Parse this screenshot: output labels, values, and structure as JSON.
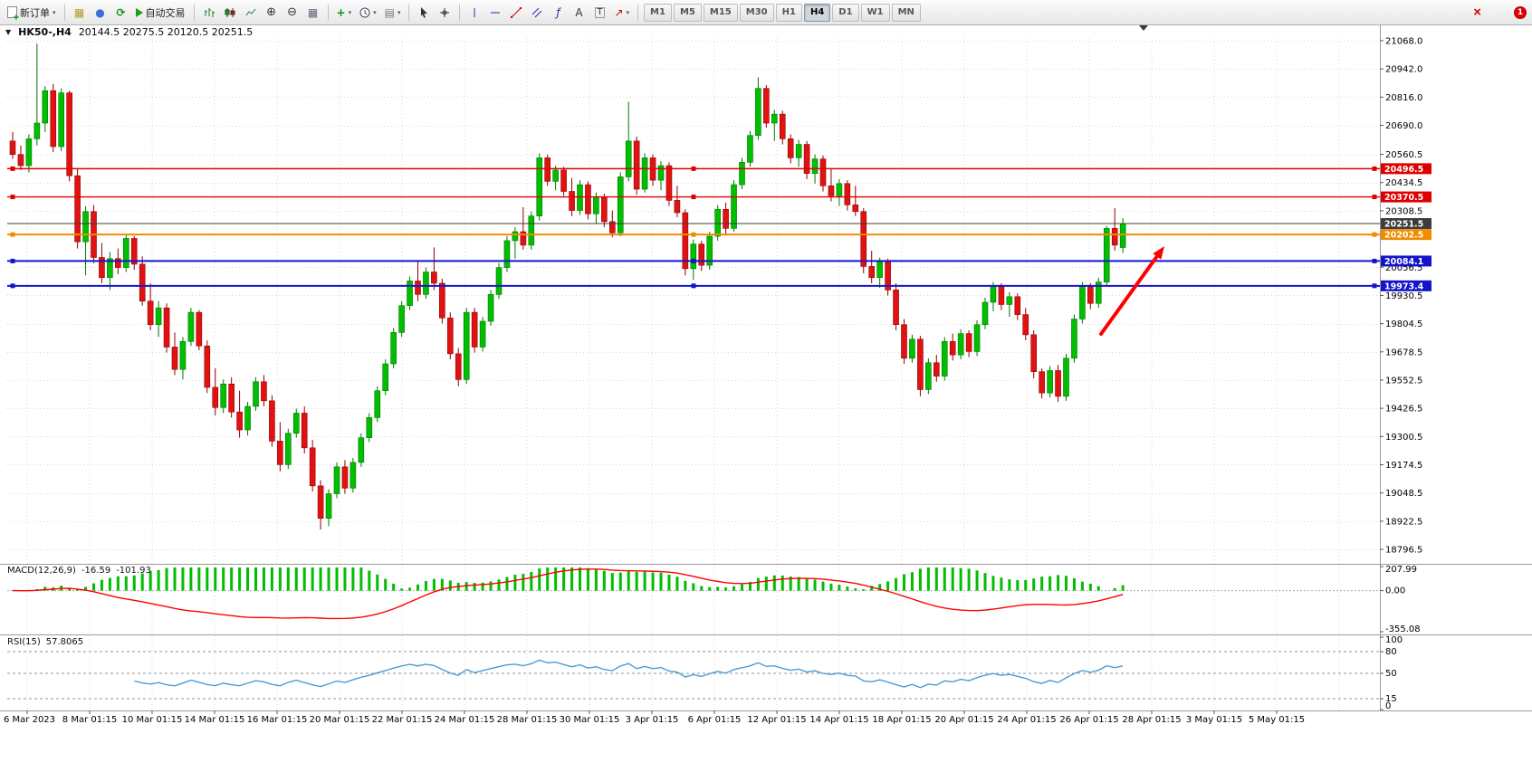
{
  "toolbar": {
    "new_order": "新订单",
    "auto_trading": "自动交易",
    "timeframes": [
      "M1",
      "M5",
      "M15",
      "M30",
      "H1",
      "H4",
      "D1",
      "W1",
      "MN"
    ],
    "active_timeframe": "H4",
    "notification_count": "1"
  },
  "chart": {
    "symbol_period": "HK50-,H4",
    "ohlc_text": "20144.5 20275.5 20120.5 20251.5"
  },
  "chart_data": {
    "type": "candlestick",
    "symbol": "HK50-",
    "timeframe": "H4",
    "price_range": {
      "min": 18736,
      "max": 21080
    },
    "y_axis_labels": [
      "21068.0",
      "20942.0",
      "20816.0",
      "20690.0",
      "20560.5",
      "20434.5",
      "20308.5",
      "20056.5",
      "19930.5",
      "19804.5",
      "19678.5",
      "19552.5",
      "19426.5",
      "19300.5",
      "19174.5",
      "19048.5",
      "18922.5",
      "18796.5"
    ],
    "x_axis_labels": [
      "6 Mar 2023",
      "8 Mar 01:15",
      "10 Mar 01:15",
      "14 Mar 01:15",
      "16 Mar 01:15",
      "20 Mar 01:15",
      "22 Mar 01:15",
      "24 Mar 01:15",
      "28 Mar 01:15",
      "30 Mar 01:15",
      "3 Apr 01:15",
      "6 Apr 01:15",
      "12 Apr 01:15",
      "14 Apr 01:15",
      "18 Apr 01:15",
      "20 Apr 01:15",
      "24 Apr 01:15",
      "26 Apr 01:15",
      "28 Apr 01:15",
      "3 May 01:15",
      "5 May 01:15"
    ],
    "levels": [
      {
        "price": 20496.5,
        "label": "20496.5",
        "color": "#DE0000",
        "width": 1.4
      },
      {
        "price": 20370.5,
        "label": "20370.5",
        "color": "#DE0000",
        "width": 1.4
      },
      {
        "price": 20251.5,
        "label": "20251.5",
        "color": "#3C3C3C",
        "width": 1,
        "role": "last-price"
      },
      {
        "price": 20202.5,
        "label": "20202.5",
        "color": "#F08C00",
        "width": 2
      },
      {
        "price": 20084.1,
        "label": "20084.1",
        "color": "#1414CC",
        "width": 2
      },
      {
        "price": 19973.4,
        "label": "19973.4",
        "color": "#1414CC",
        "width": 2
      }
    ],
    "colors": {
      "bull": "#00BE00",
      "bull_edge": "#007700",
      "bear": "#E21212",
      "bear_edge": "#8E0000",
      "grid": "#D9D9D9",
      "macd_hist": "#00BE00",
      "macd_signal": "#FF0000",
      "rsi_line": "#4E9BD2"
    },
    "annotation": {
      "type": "arrow",
      "direction": "up-right",
      "color": "#FF0000"
    },
    "macd": {
      "name": "MACD(12,26,9)",
      "value_main": "-16.59",
      "value_signal": "-101.93",
      "axis_labels": [
        "207.99",
        "0.00",
        "-355.08"
      ],
      "max": 207.99,
      "min": -355.08,
      "fast": 12,
      "slow": 26,
      "smoothing": 9
    },
    "rsi": {
      "name": "RSI(15)",
      "value": "57.8065",
      "axis_labels": [
        "100",
        "80",
        "50",
        "15",
        "0"
      ],
      "levels": [
        80,
        50,
        15
      ],
      "period": 15
    },
    "candles": [
      [
        20620,
        20660,
        20540,
        20560
      ],
      [
        20560,
        20600,
        20490,
        20510
      ],
      [
        20510,
        20650,
        20480,
        20630
      ],
      [
        20630,
        21055,
        20600,
        20700
      ],
      [
        20700,
        20865,
        20660,
        20845
      ],
      [
        20845,
        20875,
        20570,
        20595
      ],
      [
        20595,
        20855,
        20575,
        20835
      ],
      [
        20835,
        20845,
        20440,
        20465
      ],
      [
        20465,
        20500,
        20140,
        20170
      ],
      [
        20170,
        20330,
        20020,
        20305
      ],
      [
        20305,
        20335,
        20075,
        20100
      ],
      [
        20100,
        20165,
        19985,
        20010
      ],
      [
        20010,
        20125,
        19955,
        20095
      ],
      [
        20095,
        20140,
        20025,
        20055
      ],
      [
        20055,
        20205,
        20035,
        20185
      ],
      [
        20185,
        20195,
        20045,
        20070
      ],
      [
        20070,
        20105,
        19885,
        19905
      ],
      [
        19905,
        19985,
        19775,
        19800
      ],
      [
        19800,
        19905,
        19745,
        19875
      ],
      [
        19875,
        19895,
        19675,
        19700
      ],
      [
        19700,
        19765,
        19575,
        19600
      ],
      [
        19600,
        19745,
        19555,
        19725
      ],
      [
        19725,
        19875,
        19705,
        19855
      ],
      [
        19855,
        19865,
        19685,
        19705
      ],
      [
        19705,
        19730,
        19495,
        19520
      ],
      [
        19520,
        19605,
        19395,
        19430
      ],
      [
        19430,
        19555,
        19405,
        19535
      ],
      [
        19535,
        19565,
        19385,
        19410
      ],
      [
        19410,
        19505,
        19295,
        19330
      ],
      [
        19330,
        19455,
        19305,
        19435
      ],
      [
        19435,
        19565,
        19415,
        19545
      ],
      [
        19545,
        19575,
        19435,
        19460
      ],
      [
        19460,
        19485,
        19255,
        19280
      ],
      [
        19280,
        19365,
        19145,
        19175
      ],
      [
        19175,
        19335,
        19155,
        19315
      ],
      [
        19315,
        19425,
        19295,
        19405
      ],
      [
        19405,
        19435,
        19225,
        19250
      ],
      [
        19250,
        19285,
        19055,
        19080
      ],
      [
        19080,
        19105,
        18885,
        18935
      ],
      [
        18935,
        19065,
        18900,
        19045
      ],
      [
        19045,
        19185,
        19025,
        19165
      ],
      [
        19165,
        19195,
        19045,
        19070
      ],
      [
        19070,
        19205,
        19050,
        19185
      ],
      [
        19185,
        19315,
        19165,
        19295
      ],
      [
        19295,
        19405,
        19275,
        19385
      ],
      [
        19385,
        19525,
        19365,
        19505
      ],
      [
        19505,
        19645,
        19485,
        19625
      ],
      [
        19625,
        19785,
        19605,
        19765
      ],
      [
        19765,
        19905,
        19745,
        19885
      ],
      [
        19885,
        20015,
        19865,
        19995
      ],
      [
        19995,
        20085,
        19905,
        19935
      ],
      [
        19935,
        20055,
        19915,
        20035
      ],
      [
        20035,
        20145,
        19955,
        19985
      ],
      [
        19985,
        20005,
        19805,
        19830
      ],
      [
        19830,
        19855,
        19645,
        19670
      ],
      [
        19670,
        19695,
        19525,
        19555
      ],
      [
        19555,
        19875,
        19535,
        19855
      ],
      [
        19855,
        19875,
        19675,
        19700
      ],
      [
        19700,
        19835,
        19680,
        19815
      ],
      [
        19815,
        19955,
        19795,
        19935
      ],
      [
        19935,
        20075,
        19915,
        20055
      ],
      [
        20055,
        20195,
        20035,
        20175
      ],
      [
        20175,
        20235,
        20095,
        20215
      ],
      [
        20215,
        20325,
        20135,
        20155
      ],
      [
        20155,
        20305,
        20135,
        20285
      ],
      [
        20285,
        20565,
        20265,
        20545
      ],
      [
        20545,
        20560,
        20420,
        20440
      ],
      [
        20440,
        20510,
        20400,
        20490
      ],
      [
        20490,
        20505,
        20375,
        20395
      ],
      [
        20395,
        20455,
        20285,
        20310
      ],
      [
        20310,
        20445,
        20290,
        20425
      ],
      [
        20425,
        20440,
        20270,
        20295
      ],
      [
        20295,
        20390,
        20250,
        20370
      ],
      [
        20370,
        20385,
        20235,
        20260
      ],
      [
        20260,
        20310,
        20190,
        20210
      ],
      [
        20210,
        20480,
        20195,
        20460
      ],
      [
        20460,
        20795,
        20440,
        20620
      ],
      [
        20620,
        20640,
        20380,
        20405
      ],
      [
        20405,
        20565,
        20390,
        20545
      ],
      [
        20545,
        20560,
        20420,
        20445
      ],
      [
        20445,
        20530,
        20400,
        20510
      ],
      [
        20510,
        20525,
        20330,
        20355
      ],
      [
        20355,
        20420,
        20280,
        20300
      ],
      [
        20300,
        20315,
        20020,
        20050
      ],
      [
        20050,
        20180,
        20000,
        20160
      ],
      [
        20160,
        20175,
        20040,
        20065
      ],
      [
        20065,
        20215,
        20045,
        20195
      ],
      [
        20195,
        20335,
        20175,
        20315
      ],
      [
        20315,
        20345,
        20205,
        20230
      ],
      [
        20230,
        20445,
        20215,
        20425
      ],
      [
        20425,
        20545,
        20405,
        20525
      ],
      [
        20525,
        20665,
        20505,
        20645
      ],
      [
        20645,
        20905,
        20625,
        20855
      ],
      [
        20855,
        20870,
        20680,
        20700
      ],
      [
        20700,
        20760,
        20620,
        20740
      ],
      [
        20740,
        20755,
        20605,
        20630
      ],
      [
        20630,
        20650,
        20520,
        20545
      ],
      [
        20545,
        20625,
        20505,
        20605
      ],
      [
        20605,
        20620,
        20450,
        20475
      ],
      [
        20475,
        20560,
        20430,
        20540
      ],
      [
        20540,
        20555,
        20395,
        20420
      ],
      [
        20420,
        20495,
        20350,
        20375
      ],
      [
        20375,
        20450,
        20330,
        20430
      ],
      [
        20430,
        20445,
        20310,
        20335
      ],
      [
        20335,
        20420,
        20285,
        20305
      ],
      [
        20305,
        20320,
        20030,
        20060
      ],
      [
        20060,
        20130,
        19985,
        20010
      ],
      [
        20010,
        20100,
        19965,
        20080
      ],
      [
        20080,
        20095,
        19930,
        19955
      ],
      [
        19955,
        19985,
        19775,
        19800
      ],
      [
        19800,
        19825,
        19625,
        19650
      ],
      [
        19650,
        19755,
        19630,
        19735
      ],
      [
        19735,
        19750,
        19480,
        19510
      ],
      [
        19510,
        19650,
        19490,
        19630
      ],
      [
        19630,
        19665,
        19545,
        19570
      ],
      [
        19570,
        19745,
        19550,
        19725
      ],
      [
        19725,
        19760,
        19640,
        19665
      ],
      [
        19665,
        19780,
        19645,
        19760
      ],
      [
        19760,
        19775,
        19655,
        19680
      ],
      [
        19680,
        19820,
        19660,
        19800
      ],
      [
        19800,
        19920,
        19780,
        19900
      ],
      [
        19900,
        19990,
        19860,
        19970
      ],
      [
        19970,
        19985,
        19865,
        19890
      ],
      [
        19890,
        19945,
        19835,
        19925
      ],
      [
        19925,
        19940,
        19820,
        19845
      ],
      [
        19845,
        19875,
        19730,
        19755
      ],
      [
        19755,
        19775,
        19560,
        19590
      ],
      [
        19590,
        19605,
        19470,
        19495
      ],
      [
        19495,
        19615,
        19475,
        19595
      ],
      [
        19595,
        19620,
        19455,
        19480
      ],
      [
        19480,
        19670,
        19460,
        19650
      ],
      [
        19650,
        19845,
        19630,
        19825
      ],
      [
        19825,
        19990,
        19805,
        19970
      ],
      [
        19970,
        19985,
        19870,
        19895
      ],
      [
        19895,
        20010,
        19875,
        19990
      ],
      [
        19990,
        20240,
        19975,
        20230
      ],
      [
        20230,
        20320,
        20130,
        20155
      ],
      [
        20144.5,
        20275.5,
        20120.5,
        20251.5
      ]
    ]
  }
}
